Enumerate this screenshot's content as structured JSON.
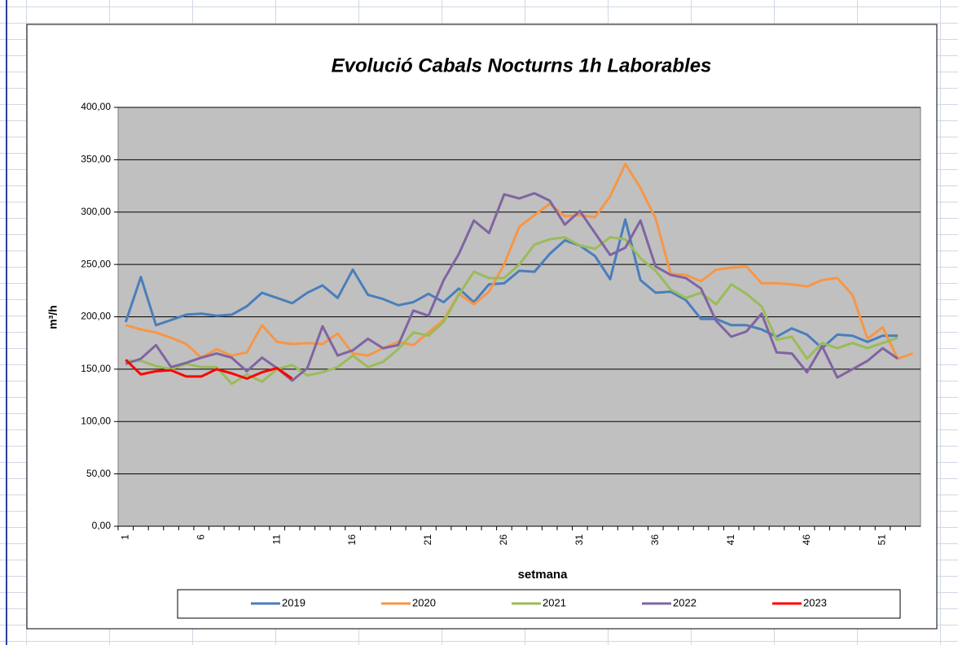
{
  "chart_data": {
    "type": "line",
    "title": "Evolució Cabals Nocturns 1h Laborables",
    "x_label": "setmana",
    "y_label": "m³/h",
    "categories": [
      1,
      null,
      null,
      null,
      null,
      6,
      null,
      null,
      null,
      null,
      11,
      null,
      null,
      null,
      null,
      16,
      null,
      null,
      null,
      null,
      21,
      null,
      null,
      null,
      null,
      26,
      null,
      null,
      null,
      null,
      31,
      null,
      null,
      null,
      null,
      36,
      null,
      null,
      null,
      null,
      41,
      null,
      null,
      null,
      null,
      46,
      null,
      null,
      null,
      null,
      51,
      null,
      null
    ],
    "ylim": [
      0,
      400
    ],
    "yticks": [
      {
        "value": 0,
        "label": "0,00"
      },
      {
        "value": 50,
        "label": "50,00"
      },
      {
        "value": 100,
        "label": "100,00"
      },
      {
        "value": 150,
        "label": "150,00"
      },
      {
        "value": 200,
        "label": "200,00"
      },
      {
        "value": 250,
        "label": "250,00"
      },
      {
        "value": 300,
        "label": "300,00"
      },
      {
        "value": 350,
        "label": "350,00"
      },
      {
        "value": 400,
        "label": "400,00"
      }
    ],
    "grid": true,
    "legend": "bottom",
    "series": [
      {
        "name": "2019",
        "color": "#4a7ebb",
        "values": [
          195,
          238,
          192,
          197,
          202,
          203,
          201,
          202,
          210,
          223,
          218,
          213,
          223,
          230,
          218,
          245,
          221,
          217,
          211,
          214,
          222,
          214,
          227,
          214,
          231,
          232,
          244,
          243,
          260,
          273,
          268,
          258,
          236,
          293,
          235,
          223,
          224,
          216,
          198,
          198,
          192,
          192,
          188,
          181,
          189,
          183,
          170,
          183,
          182,
          176,
          182,
          182,
          null
        ]
      },
      {
        "name": "2020",
        "color": "#f79646",
        "values": [
          192,
          188,
          185,
          180,
          174,
          161,
          169,
          163,
          166,
          192,
          176,
          174,
          175,
          174,
          184,
          165,
          163,
          170,
          176,
          173,
          185,
          197,
          222,
          212,
          224,
          250,
          286,
          297,
          308,
          296,
          297,
          295,
          315,
          346,
          323,
          294,
          241,
          240,
          234,
          245,
          247,
          248,
          232,
          232,
          231,
          229,
          235,
          237,
          221,
          179,
          190,
          160,
          165
        ]
      },
      {
        "name": "2021",
        "color": "#9bbb59",
        "values": [
          158,
          158,
          153,
          150,
          155,
          152,
          152,
          136,
          145,
          138,
          150,
          154,
          144,
          147,
          152,
          163,
          152,
          157,
          169,
          185,
          182,
          195,
          221,
          243,
          237,
          237,
          250,
          269,
          274,
          276,
          268,
          265,
          276,
          274,
          256,
          244,
          226,
          218,
          223,
          212,
          231,
          222,
          210,
          178,
          181,
          160,
          175,
          170,
          175,
          170,
          175,
          180,
          null
        ]
      },
      {
        "name": "2022",
        "color": "#8064a2",
        "values": [
          155,
          160,
          173,
          152,
          156,
          161,
          165,
          161,
          148,
          161,
          151,
          139,
          151,
          191,
          163,
          168,
          179,
          170,
          173,
          206,
          201,
          235,
          260,
          292,
          280,
          317,
          313,
          318,
          311,
          288,
          301,
          280,
          259,
          266,
          292,
          248,
          240,
          237,
          227,
          196,
          181,
          186,
          203,
          166,
          165,
          147,
          172,
          142,
          150,
          158,
          170,
          160,
          null
        ]
      },
      {
        "name": "2023",
        "color": "#ff0000",
        "values": [
          159,
          145,
          148,
          149,
          143,
          143,
          150,
          146,
          141,
          147,
          151,
          141,
          null,
          null,
          null,
          null,
          null,
          null,
          null,
          null,
          null,
          null,
          null,
          null,
          null,
          null,
          null,
          null,
          null,
          null,
          null,
          null,
          null,
          null,
          null,
          null,
          null,
          null,
          null,
          null,
          null,
          null,
          null,
          null,
          null,
          null,
          null,
          null,
          null,
          null,
          null,
          null,
          null
        ]
      }
    ]
  }
}
